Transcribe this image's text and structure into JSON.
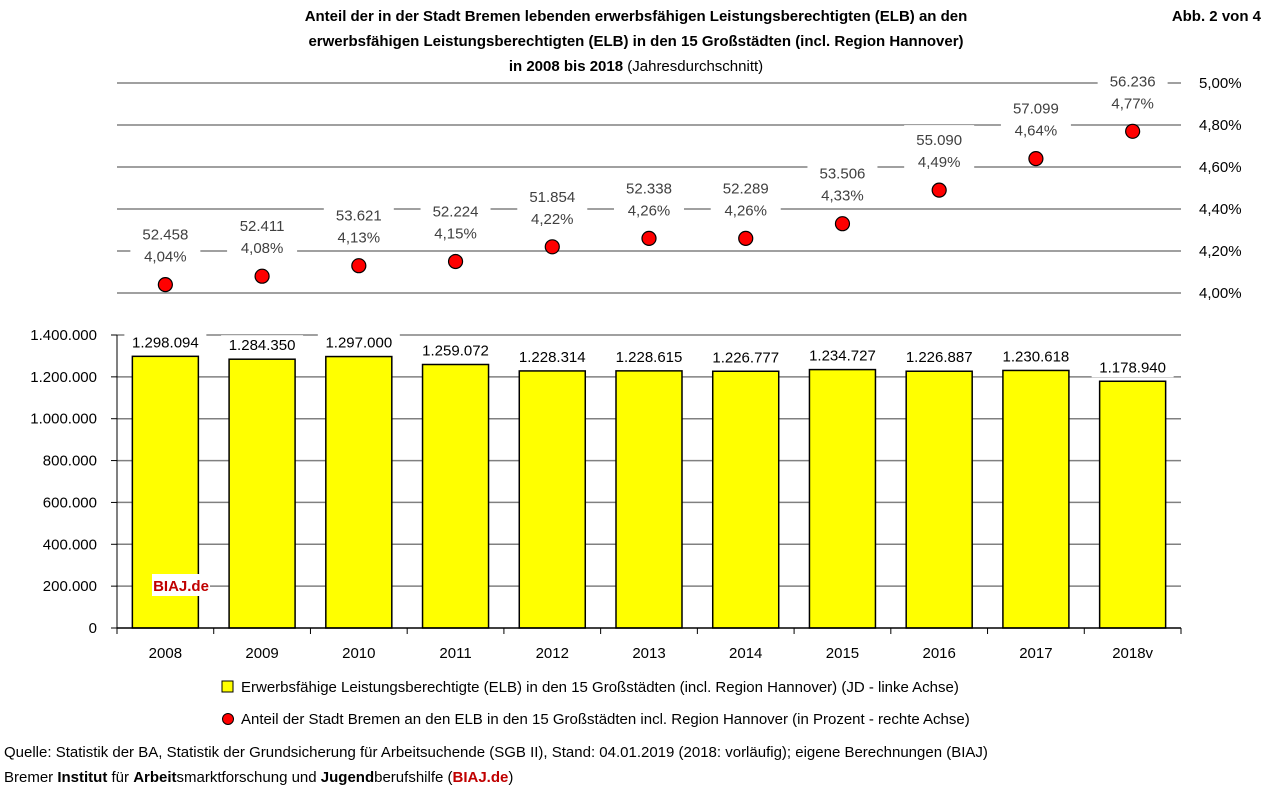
{
  "header": {
    "title_line1": "Anteil der in der Stadt Bremen lebenden erwerbsfähigen Leistungsberechtigten (ELB) an den",
    "title_line2": "erwerbsfähigen Leistungsberechtigten (ELB) in den 15 Großstädten (incl. Region Hannover)",
    "title_line3_bold": "in 2008 bis 2018",
    "title_line3_normal": " (Jahresdurchschnitt)",
    "figure_number": "Abb. 2 von 4"
  },
  "chart_data": {
    "type": "bar",
    "categories": [
      "2008",
      "2009",
      "2010",
      "2011",
      "2012",
      "2013",
      "2014",
      "2015",
      "2016",
      "2017",
      "2018v"
    ],
    "series": [
      {
        "name": "Erwerbsfähige Leistungsberechtigte (ELB) in den 15 Großstädten (incl. Region Hannover) (JD - linke Achse)",
        "type": "bar",
        "axis": "left",
        "values": [
          1298094,
          1284350,
          1297000,
          1259072,
          1228314,
          1228615,
          1226777,
          1234727,
          1226887,
          1230618,
          1178940
        ],
        "labels": [
          "1.298.094",
          "1.284.350",
          "1.297.000",
          "1.259.072",
          "1.228.314",
          "1.228.615",
          "1.226.777",
          "1.234.727",
          "1.226.887",
          "1.230.618",
          "1.178.940"
        ],
        "color": "#ffff00"
      },
      {
        "name": "Anteil der Stadt Bremen an den ELB in den 15 Großstädten incl. Region Hannover (in Prozent - rechte Achse)",
        "type": "scatter",
        "axis": "right",
        "values": [
          4.04,
          4.08,
          4.13,
          4.15,
          4.22,
          4.26,
          4.26,
          4.33,
          4.49,
          4.64,
          4.77
        ],
        "labels": [
          "4,04%",
          "4,08%",
          "4,13%",
          "4,15%",
          "4,22%",
          "4,26%",
          "4,26%",
          "4,33%",
          "4,49%",
          "4,64%",
          "4,77%"
        ],
        "counts": [
          52458,
          52411,
          53621,
          52224,
          51854,
          52338,
          52289,
          53506,
          55090,
          57099,
          56236
        ],
        "count_labels": [
          "52.458",
          "52.411",
          "53.621",
          "52.224",
          "51.854",
          "52.338",
          "52.289",
          "53.506",
          "55.090",
          "57.099",
          "56.236"
        ],
        "color": "#ff0000"
      }
    ],
    "left_axis": {
      "ylim": [
        0,
        1400000
      ],
      "ticks": [
        0,
        200000,
        400000,
        600000,
        800000,
        1000000,
        1200000,
        1400000
      ],
      "tick_labels": [
        "0",
        "200.000",
        "400.000",
        "600.000",
        "800.000",
        "1.000.000",
        "1.200.000",
        "1.400.000"
      ]
    },
    "right_axis": {
      "ylim": [
        4.0,
        5.0
      ],
      "ticks": [
        4.0,
        4.2,
        4.4,
        4.6,
        4.8,
        5.0
      ],
      "tick_labels": [
        "4,00%",
        "4,20%",
        "4,40%",
        "4,60%",
        "4,80%",
        "5,00%"
      ]
    },
    "grid": true,
    "legend_position": "bottom",
    "watermark": "BIAJ.de"
  },
  "footer": {
    "source": "Quelle: Statistik der BA, Statistik der Grundsicherung für Arbeitsuchende (SGB II), Stand: 04.01.2019 (2018: vorläufig); eigene Berechnungen (BIAJ)",
    "org_parts": [
      {
        "text": "Bremer ",
        "style": "normal"
      },
      {
        "text": "Institut",
        "style": "bold"
      },
      {
        "text": " für ",
        "style": "normal"
      },
      {
        "text": "Arbeit",
        "style": "bold"
      },
      {
        "text": "smarktforschung und ",
        "style": "normal"
      },
      {
        "text": "Jugend",
        "style": "bold"
      },
      {
        "text": "berufshilfe (",
        "style": "normal"
      },
      {
        "text": "BIAJ.de",
        "style": "red"
      },
      {
        "text": ")",
        "style": "normal"
      }
    ]
  }
}
